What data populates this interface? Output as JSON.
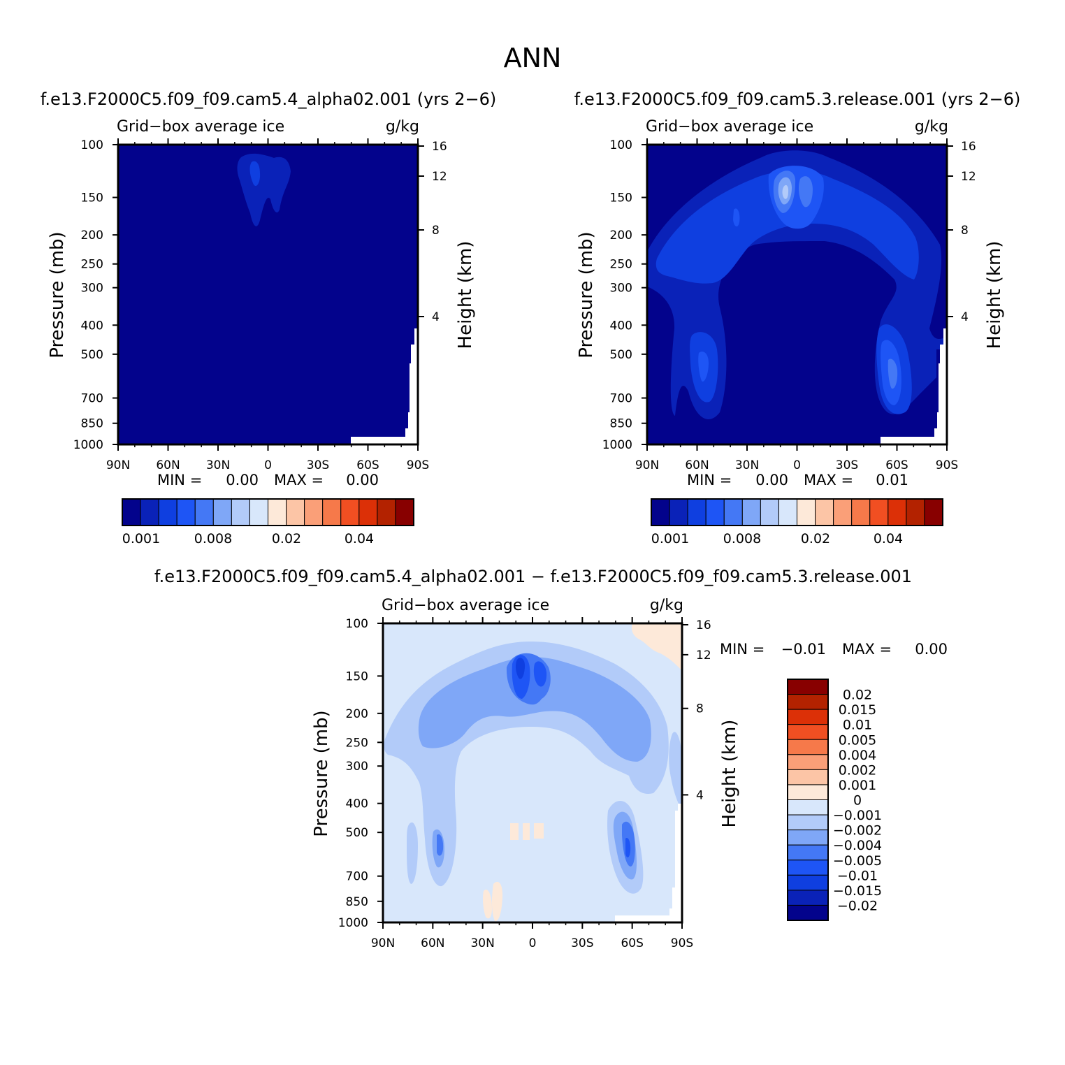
{
  "page_title": "ANN",
  "bottom_title": "f.e13.F2000C5.f09_f09.cam5.4_alpha02.001 − f.e13.F2000C5.f09_f09.cam5.3.release.001",
  "colors": {
    "abs_scale": [
      "#03038c",
      "#0a22b8",
      "#0f3fe0",
      "#1e55f5",
      "#4478f5",
      "#7fa7f7",
      "#b2cbf9",
      "#d8e7fb",
      "#fde9d9",
      "#fcc5a6",
      "#fa9f78",
      "#f6794a",
      "#f14f22",
      "#dc3007",
      "#b32200",
      "#880000"
    ],
    "diff_scale": [
      "#03038c",
      "#0a22b8",
      "#0f3fe0",
      "#1e55f5",
      "#4478f5",
      "#7fa7f7",
      "#b2cbf9",
      "#d8e7fb",
      "#fde9d9",
      "#fcc5a6",
      "#fa9f78",
      "#f6794a",
      "#f14f22",
      "#dc3007",
      "#b32200",
      "#880000"
    ]
  },
  "chart_data": [
    {
      "type": "heatmap",
      "title": "f.e13.F2000C5.f09_f09.cam5.4_alpha02.001 (yrs 2−6)",
      "subtitle_left": "Grid−box average ice",
      "subtitle_right": "g/kg",
      "xlabel": "",
      "ylabel": "Pressure (mb)",
      "ylabel_right": "Height (km)",
      "x_ticks": [
        "90N",
        "60N",
        "30N",
        "0",
        "30S",
        "60S",
        "90S"
      ],
      "y_ticks": [
        "100",
        "150",
        "200",
        "250",
        "300",
        "400",
        "500",
        "700",
        "850",
        "1000"
      ],
      "y_right_ticks": [
        "16",
        "12",
        "8",
        "4"
      ],
      "ylim": [
        1000,
        100
      ],
      "y_scale": "log",
      "min_label": "MIN =",
      "min_value": "0.00",
      "max_label": "MAX =",
      "max_value": "0.00",
      "colorbar_labels": [
        "0.001",
        "0.008",
        "0.02",
        "0.04"
      ],
      "features": "Nearly uniform lowest-level values; small enhanced ice region near equator around 150–300 mb."
    },
    {
      "type": "heatmap",
      "title": "f.e13.F2000C5.f09_f09.cam5.3.release.001 (yrs 2−6)",
      "subtitle_left": "Grid−box average ice",
      "subtitle_right": "g/kg",
      "xlabel": "",
      "ylabel": "Pressure (mb)",
      "ylabel_right": "Height (km)",
      "x_ticks": [
        "90N",
        "60N",
        "30N",
        "0",
        "30S",
        "60S",
        "90S"
      ],
      "y_ticks": [
        "100",
        "150",
        "200",
        "250",
        "300",
        "400",
        "500",
        "700",
        "850",
        "1000"
      ],
      "y_right_ticks": [
        "16",
        "12",
        "8",
        "4"
      ],
      "ylim": [
        1000,
        100
      ],
      "y_scale": "log",
      "min_label": "MIN =",
      "min_value": "0.00",
      "max_label": "MAX =",
      "max_value": "0.01",
      "colorbar_labels": [
        "0.001",
        "0.008",
        "0.02",
        "0.04"
      ],
      "features": "Arch of elevated ice from mid-latitudes through tropical upper troposphere; maximum near equator 200–300 mb; columns near 60N and 60S."
    },
    {
      "type": "heatmap",
      "title": "",
      "subtitle_left": "Grid−box average ice",
      "subtitle_right": "g/kg",
      "xlabel": "",
      "ylabel": "Pressure (mb)",
      "ylabel_right": "Height (km)",
      "x_ticks": [
        "90N",
        "60N",
        "30N",
        "0",
        "30S",
        "60S",
        "90S"
      ],
      "y_ticks": [
        "100",
        "150",
        "200",
        "250",
        "300",
        "400",
        "500",
        "700",
        "850",
        "1000"
      ],
      "y_right_ticks": [
        "16",
        "12",
        "8",
        "4"
      ],
      "ylim": [
        1000,
        100
      ],
      "y_scale": "log",
      "min_label": "MIN =",
      "min_value": "−0.01",
      "max_label": "MAX =",
      "max_value": "0.00",
      "colorbar_labels": [
        "0.02",
        "0.015",
        "0.01",
        "0.005",
        "0.004",
        "0.002",
        "0.001",
        "0",
        "−0.001",
        "−0.002",
        "−0.004",
        "−0.005",
        "−0.01",
        "−0.015",
        "−0.02"
      ],
      "features": "Negative arch pattern mirroring control run; strongest negative near equator 200–300 mb; slight positive near 90S upper levels."
    }
  ]
}
